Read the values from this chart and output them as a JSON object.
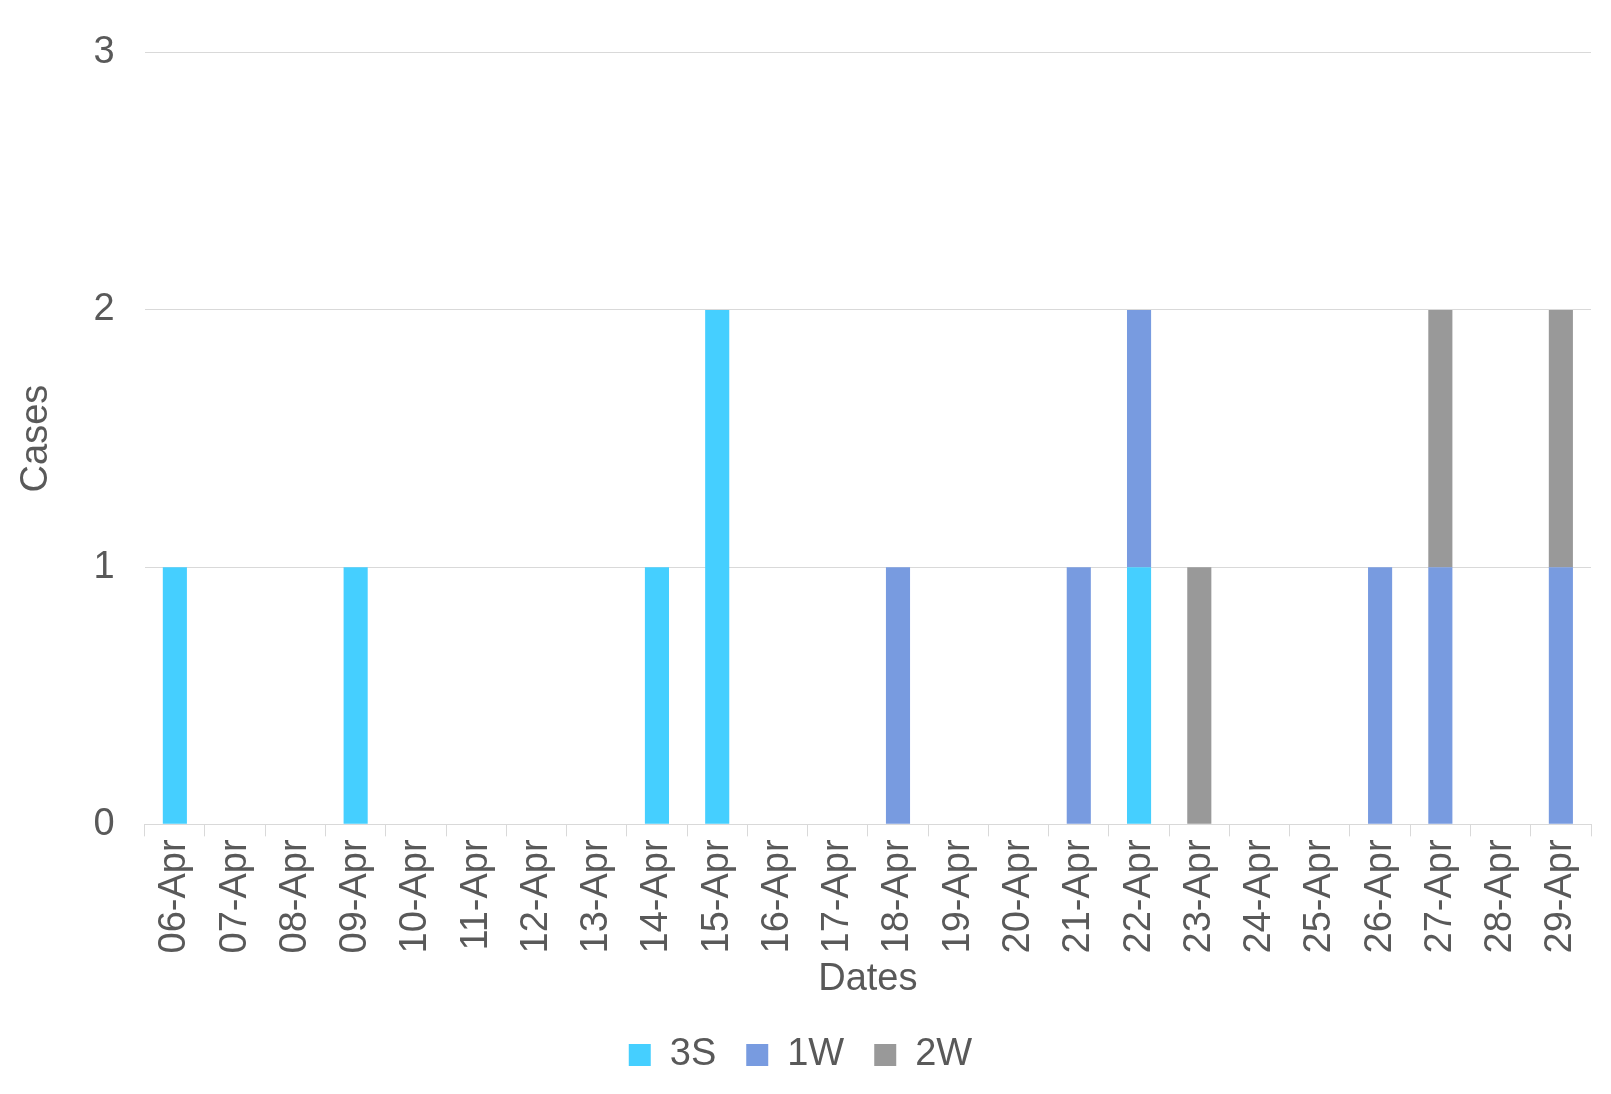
{
  "chart_data": {
    "type": "bar",
    "stacked": true,
    "xlabel": "Dates",
    "ylabel": "Cases",
    "categories": [
      "06-Apr",
      "07-Apr",
      "08-Apr",
      "09-Apr",
      "10-Apr",
      "11-Apr",
      "12-Apr",
      "13-Apr",
      "14-Apr",
      "15-Apr",
      "16-Apr",
      "17-Apr",
      "18-Apr",
      "19-Apr",
      "20-Apr",
      "21-Apr",
      "22-Apr",
      "23-Apr",
      "24-Apr",
      "25-Apr",
      "26-Apr",
      "27-Apr",
      "28-Apr",
      "29-Apr"
    ],
    "series": [
      {
        "name": "3S",
        "color": "#45cfff",
        "values": [
          1,
          null,
          null,
          1,
          null,
          null,
          null,
          null,
          1,
          2,
          null,
          null,
          null,
          null,
          null,
          null,
          1,
          null,
          null,
          null,
          null,
          null,
          null,
          null
        ]
      },
      {
        "name": "1W",
        "color": "#789be0",
        "values": [
          null,
          null,
          null,
          null,
          null,
          null,
          null,
          null,
          null,
          null,
          null,
          null,
          1,
          null,
          null,
          1,
          1,
          null,
          null,
          null,
          1,
          1,
          null,
          1
        ]
      },
      {
        "name": "2W",
        "color": "#999999",
        "values": [
          null,
          null,
          null,
          null,
          null,
          null,
          null,
          null,
          null,
          null,
          null,
          null,
          null,
          null,
          null,
          null,
          null,
          1,
          null,
          null,
          null,
          1,
          null,
          1
        ]
      }
    ],
    "ylim": [
      0,
      3
    ],
    "yticks": [
      0,
      1,
      2,
      3
    ],
    "grid": "y",
    "legend": "bottom"
  }
}
